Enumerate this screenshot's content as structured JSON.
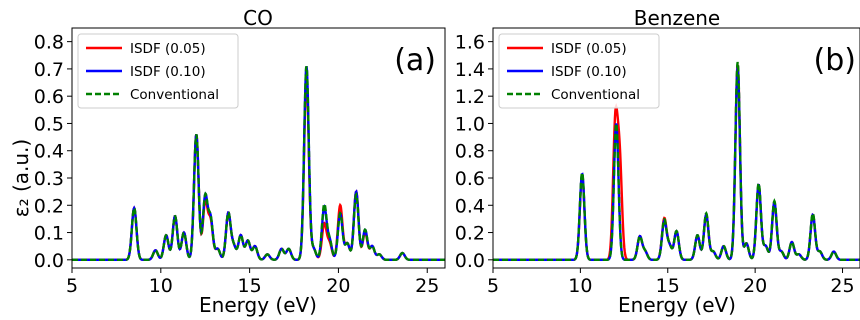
{
  "chart_data": [
    {
      "type": "line",
      "title": "CO",
      "panel_label": "(a)",
      "xlabel": "Energy (eV)",
      "ylabel": "ε₂ (a.u.)",
      "xlim": [
        5,
        26
      ],
      "ylim": [
        -0.03,
        0.85
      ],
      "xticks": [
        5,
        10,
        15,
        20,
        25
      ],
      "yticks": [
        0.0,
        0.1,
        0.2,
        0.3,
        0.4,
        0.5,
        0.6,
        0.7,
        0.8
      ],
      "ytick_labels": [
        "0.0",
        "0.1",
        "0.2",
        "0.3",
        "0.4",
        "0.5",
        "0.6",
        "0.7",
        "0.8"
      ],
      "grid": false,
      "legend_position": "top-left",
      "peak_width_eV": 0.13,
      "series": [
        {
          "name": "ISDF (0.05)",
          "color": "#ff0000",
          "dash": "solid",
          "peaks": [
            [
              8.5,
              0.19
            ],
            [
              9.7,
              0.035
            ],
            [
              10.3,
              0.09
            ],
            [
              10.8,
              0.16
            ],
            [
              11.3,
              0.1
            ],
            [
              12.0,
              0.46
            ],
            [
              12.5,
              0.21
            ],
            [
              12.8,
              0.14
            ],
            [
              13.2,
              0.04
            ],
            [
              13.8,
              0.17
            ],
            [
              14.1,
              0.05
            ],
            [
              14.5,
              0.09
            ],
            [
              14.9,
              0.07
            ],
            [
              15.3,
              0.05
            ],
            [
              16.0,
              0.02
            ],
            [
              16.8,
              0.04
            ],
            [
              17.2,
              0.04
            ],
            [
              18.2,
              0.67
            ],
            [
              18.6,
              0.04
            ],
            [
              19.2,
              0.13
            ],
            [
              19.5,
              0.06
            ],
            [
              20.1,
              0.2
            ],
            [
              20.5,
              0.06
            ],
            [
              21.0,
              0.25
            ],
            [
              21.5,
              0.1
            ],
            [
              21.9,
              0.05
            ],
            [
              22.3,
              0.02
            ],
            [
              23.6,
              0.025
            ]
          ]
        },
        {
          "name": "ISDF (0.10)",
          "color": "#0000ff",
          "dash": "solid",
          "peaks": [
            [
              8.5,
              0.19
            ],
            [
              9.7,
              0.035
            ],
            [
              10.3,
              0.09
            ],
            [
              10.8,
              0.16
            ],
            [
              11.3,
              0.1
            ],
            [
              12.0,
              0.46
            ],
            [
              12.5,
              0.23
            ],
            [
              12.8,
              0.15
            ],
            [
              13.2,
              0.04
            ],
            [
              13.8,
              0.17
            ],
            [
              14.1,
              0.05
            ],
            [
              14.5,
              0.09
            ],
            [
              14.9,
              0.07
            ],
            [
              15.3,
              0.05
            ],
            [
              16.0,
              0.02
            ],
            [
              16.8,
              0.04
            ],
            [
              17.2,
              0.04
            ],
            [
              18.2,
              0.71
            ],
            [
              18.6,
              0.04
            ],
            [
              19.2,
              0.19
            ],
            [
              19.5,
              0.07
            ],
            [
              20.1,
              0.17
            ],
            [
              20.5,
              0.06
            ],
            [
              21.0,
              0.25
            ],
            [
              21.5,
              0.11
            ],
            [
              21.9,
              0.05
            ],
            [
              22.3,
              0.02
            ],
            [
              23.6,
              0.025
            ]
          ]
        },
        {
          "name": "Conventional",
          "color": "#008000",
          "dash": "dashed",
          "peaks": [
            [
              8.5,
              0.19
            ],
            [
              9.7,
              0.035
            ],
            [
              10.3,
              0.09
            ],
            [
              10.8,
              0.16
            ],
            [
              11.3,
              0.1
            ],
            [
              12.0,
              0.46
            ],
            [
              12.5,
              0.23
            ],
            [
              12.8,
              0.15
            ],
            [
              13.2,
              0.04
            ],
            [
              13.8,
              0.17
            ],
            [
              14.1,
              0.05
            ],
            [
              14.5,
              0.09
            ],
            [
              14.9,
              0.07
            ],
            [
              15.3,
              0.05
            ],
            [
              16.0,
              0.02
            ],
            [
              16.8,
              0.04
            ],
            [
              17.2,
              0.04
            ],
            [
              18.2,
              0.71
            ],
            [
              18.6,
              0.04
            ],
            [
              19.2,
              0.2
            ],
            [
              19.5,
              0.07
            ],
            [
              20.1,
              0.17
            ],
            [
              20.5,
              0.06
            ],
            [
              21.0,
              0.24
            ],
            [
              21.5,
              0.11
            ],
            [
              21.9,
              0.05
            ],
            [
              22.3,
              0.02
            ],
            [
              23.6,
              0.025
            ]
          ]
        }
      ]
    },
    {
      "type": "line",
      "title": "Benzene",
      "panel_label": "(b)",
      "xlabel": "Energy (eV)",
      "ylabel": "",
      "xlim": [
        5,
        26
      ],
      "ylim": [
        -0.06,
        1.7
      ],
      "xticks": [
        5,
        10,
        15,
        20,
        25
      ],
      "yticks": [
        0.0,
        0.2,
        0.4,
        0.6,
        0.8,
        1.0,
        1.2,
        1.4,
        1.6
      ],
      "ytick_labels": [
        "0.0",
        "0.2",
        "0.4",
        "0.6",
        "0.8",
        "1.0",
        "1.2",
        "1.4",
        "1.6"
      ],
      "grid": false,
      "legend_position": "top-left",
      "peak_width_eV": 0.13,
      "series": [
        {
          "name": "ISDF (0.05)",
          "color": "#ff0000",
          "dash": "solid",
          "peaks": [
            [
              10.1,
              0.62
            ],
            [
              12.0,
              0.98
            ],
            [
              12.25,
              0.7
            ],
            [
              13.4,
              0.17
            ],
            [
              13.7,
              0.06
            ],
            [
              14.8,
              0.3
            ],
            [
              15.1,
              0.1
            ],
            [
              15.5,
              0.21
            ],
            [
              16.7,
              0.18
            ],
            [
              17.2,
              0.33
            ],
            [
              17.6,
              0.06
            ],
            [
              18.2,
              0.1
            ],
            [
              19.0,
              1.43
            ],
            [
              19.5,
              0.12
            ],
            [
              20.2,
              0.55
            ],
            [
              20.6,
              0.1
            ],
            [
              21.1,
              0.42
            ],
            [
              21.5,
              0.06
            ],
            [
              22.1,
              0.13
            ],
            [
              22.5,
              0.04
            ],
            [
              23.3,
              0.33
            ],
            [
              23.7,
              0.06
            ],
            [
              24.5,
              0.06
            ]
          ]
        },
        {
          "name": "ISDF (0.10)",
          "color": "#0000ff",
          "dash": "solid",
          "peaks": [
            [
              10.1,
              0.63
            ],
            [
              12.05,
              1.0
            ],
            [
              13.4,
              0.17
            ],
            [
              13.7,
              0.06
            ],
            [
              14.8,
              0.28
            ],
            [
              15.1,
              0.1
            ],
            [
              15.5,
              0.21
            ],
            [
              16.7,
              0.18
            ],
            [
              17.2,
              0.33
            ],
            [
              17.6,
              0.06
            ],
            [
              18.2,
              0.1
            ],
            [
              19.0,
              1.41
            ],
            [
              19.5,
              0.12
            ],
            [
              20.2,
              0.55
            ],
            [
              20.6,
              0.1
            ],
            [
              21.1,
              0.42
            ],
            [
              21.5,
              0.06
            ],
            [
              22.1,
              0.13
            ],
            [
              22.5,
              0.04
            ],
            [
              23.3,
              0.33
            ],
            [
              23.7,
              0.06
            ],
            [
              24.5,
              0.06
            ]
          ]
        },
        {
          "name": "Conventional",
          "color": "#008000",
          "dash": "dashed",
          "peaks": [
            [
              10.1,
              0.64
            ],
            [
              12.05,
              1.0
            ],
            [
              13.4,
              0.17
            ],
            [
              13.7,
              0.06
            ],
            [
              14.8,
              0.29
            ],
            [
              15.1,
              0.1
            ],
            [
              15.5,
              0.21
            ],
            [
              16.7,
              0.18
            ],
            [
              17.2,
              0.34
            ],
            [
              17.6,
              0.06
            ],
            [
              18.2,
              0.1
            ],
            [
              19.0,
              1.45
            ],
            [
              19.5,
              0.12
            ],
            [
              20.2,
              0.56
            ],
            [
              20.6,
              0.1
            ],
            [
              21.1,
              0.43
            ],
            [
              21.5,
              0.06
            ],
            [
              22.1,
              0.13
            ],
            [
              22.5,
              0.04
            ],
            [
              23.3,
              0.34
            ],
            [
              23.7,
              0.06
            ],
            [
              24.5,
              0.06
            ]
          ]
        }
      ]
    }
  ]
}
